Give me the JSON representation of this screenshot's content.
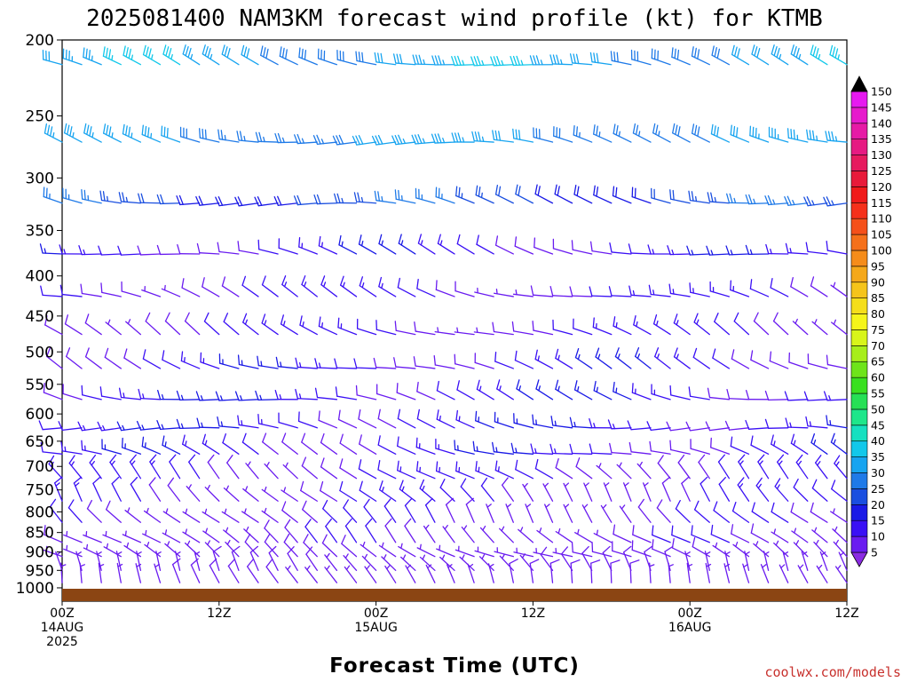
{
  "chart_data": {
    "type": "wind-barb time-height profile",
    "title": "2025081400 NAM3KM forecast wind profile (kt) for KTMB",
    "xlabel": "Forecast Time (UTC)",
    "credit": "coolwx.com/models",
    "x_ticks": [
      {
        "hour": 0,
        "lines": [
          "00Z",
          "14AUG",
          "2025"
        ]
      },
      {
        "hour": 12,
        "lines": [
          "12Z"
        ]
      },
      {
        "hour": 24,
        "lines": [
          "00Z",
          "15AUG"
        ]
      },
      {
        "hour": 36,
        "lines": [
          "12Z"
        ]
      },
      {
        "hour": 48,
        "lines": [
          "00Z",
          "16AUG"
        ]
      },
      {
        "hour": 60,
        "lines": [
          "12Z"
        ]
      }
    ],
    "x_range_hours": [
      0,
      60
    ],
    "y_axis": {
      "scale": "pressure (hPa), log",
      "range": [
        200,
        1040
      ],
      "ticks": [
        200,
        250,
        300,
        350,
        400,
        450,
        500,
        550,
        600,
        650,
        700,
        750,
        800,
        850,
        900,
        950,
        1000
      ]
    },
    "colorbar": {
      "units": "kt",
      "levels": [
        5,
        10,
        15,
        20,
        25,
        30,
        35,
        40,
        45,
        50,
        55,
        60,
        65,
        70,
        75,
        80,
        85,
        90,
        95,
        100,
        105,
        110,
        115,
        120,
        125,
        130,
        135,
        140,
        145,
        150
      ],
      "colors": [
        "#8a2be2",
        "#6a1cf0",
        "#3a10f5",
        "#1a1ae6",
        "#1a4fe0",
        "#1f7ae8",
        "#17a4f0",
        "#12c8ea",
        "#16e0c0",
        "#1ee68a",
        "#26e055",
        "#39e01f",
        "#6ee41a",
        "#a7ee1a",
        "#d8f51a",
        "#f5f51a",
        "#f5de1a",
        "#f5c41a",
        "#f5a81a",
        "#f58c1a",
        "#f5701a",
        "#f5501a",
        "#f5301a",
        "#f01a1a",
        "#e81a3a",
        "#e61a5e",
        "#e61a82",
        "#e61aa6",
        "#e61acc",
        "#e61af0"
      ]
    },
    "terrain_color": "#8b4513",
    "barb_levels_hpa": [
      215,
      270,
      323,
      375,
      425,
      475,
      525,
      575,
      625,
      675,
      725,
      775,
      825,
      875,
      912,
      950,
      985,
      1010
    ],
    "barb_times_hours": [
      0,
      1.5,
      3,
      4.5,
      6,
      7.5,
      9,
      10.5,
      12,
      13.5,
      15,
      16.5,
      18,
      19.5,
      21,
      22.5,
      24,
      25.5,
      27,
      28.5,
      30,
      31.5,
      33,
      34.5,
      36,
      37.5,
      39,
      40.5,
      42,
      43.5,
      45,
      46.5,
      48,
      49.5,
      51,
      52.5,
      54,
      55.5,
      57,
      58.5,
      60
    ],
    "wind_speed_kt_by_level": [
      32,
      30,
      22,
      12,
      11,
      11,
      12,
      13,
      13,
      12,
      11,
      9,
      8,
      7,
      6,
      6,
      6,
      6
    ],
    "wind_dir_deg_by_level": [
      285,
      280,
      280,
      285,
      290,
      295,
      290,
      285,
      280,
      290,
      310,
      320,
      320,
      310,
      300,
      330,
      340,
      350
    ]
  }
}
